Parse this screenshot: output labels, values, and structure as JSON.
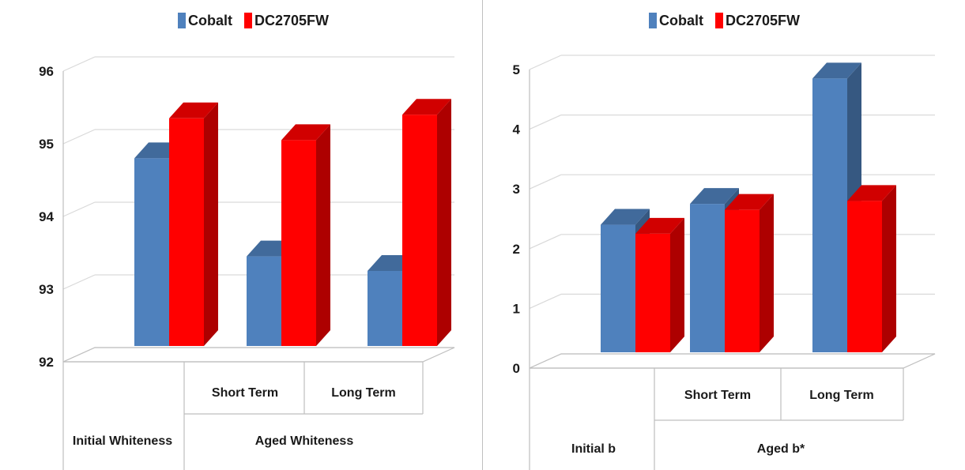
{
  "chart_data": [
    {
      "type": "bar",
      "title": "",
      "categories": [
        "Initial Whiteness",
        "Short Term",
        "Long Term"
      ],
      "category_groups": [
        {
          "label": "Initial Whiteness",
          "subcategories": [
            ""
          ]
        },
        {
          "label": "Aged Whiteness",
          "subcategories": [
            "Short Term",
            "Long Term"
          ]
        }
      ],
      "series": [
        {
          "name": "Cobalt",
          "color": "#4f81bd",
          "values": [
            94.8,
            93.45,
            93.25
          ]
        },
        {
          "name": "DC2705FW",
          "color": "#ff0000",
          "values": [
            95.35,
            95.05,
            95.4
          ]
        }
      ],
      "y_ticks": [
        "92",
        "93",
        "94",
        "95",
        "96"
      ],
      "ylim": [
        92,
        96
      ],
      "grid": true,
      "legend_position": "top",
      "style": "3d-clustered-column"
    },
    {
      "type": "bar",
      "title": "",
      "categories": [
        "Initial b",
        "Short Term",
        "Long Term"
      ],
      "category_groups": [
        {
          "label": "Initial b",
          "subcategories": [
            ""
          ]
        },
        {
          "label": "Aged b*",
          "subcategories": [
            "Short Term",
            "Long Term"
          ]
        }
      ],
      "series": [
        {
          "name": "Cobalt",
          "color": "#4f81bd",
          "values": [
            2.4,
            2.75,
            4.85
          ]
        },
        {
          "name": "DC2705FW",
          "color": "#ff0000",
          "values": [
            2.25,
            2.65,
            2.8
          ]
        }
      ],
      "y_ticks": [
        "0",
        "1",
        "2",
        "3",
        "4",
        "5"
      ],
      "ylim": [
        0,
        5
      ],
      "grid": true,
      "legend_position": "top",
      "style": "3d-clustered-column"
    }
  ]
}
